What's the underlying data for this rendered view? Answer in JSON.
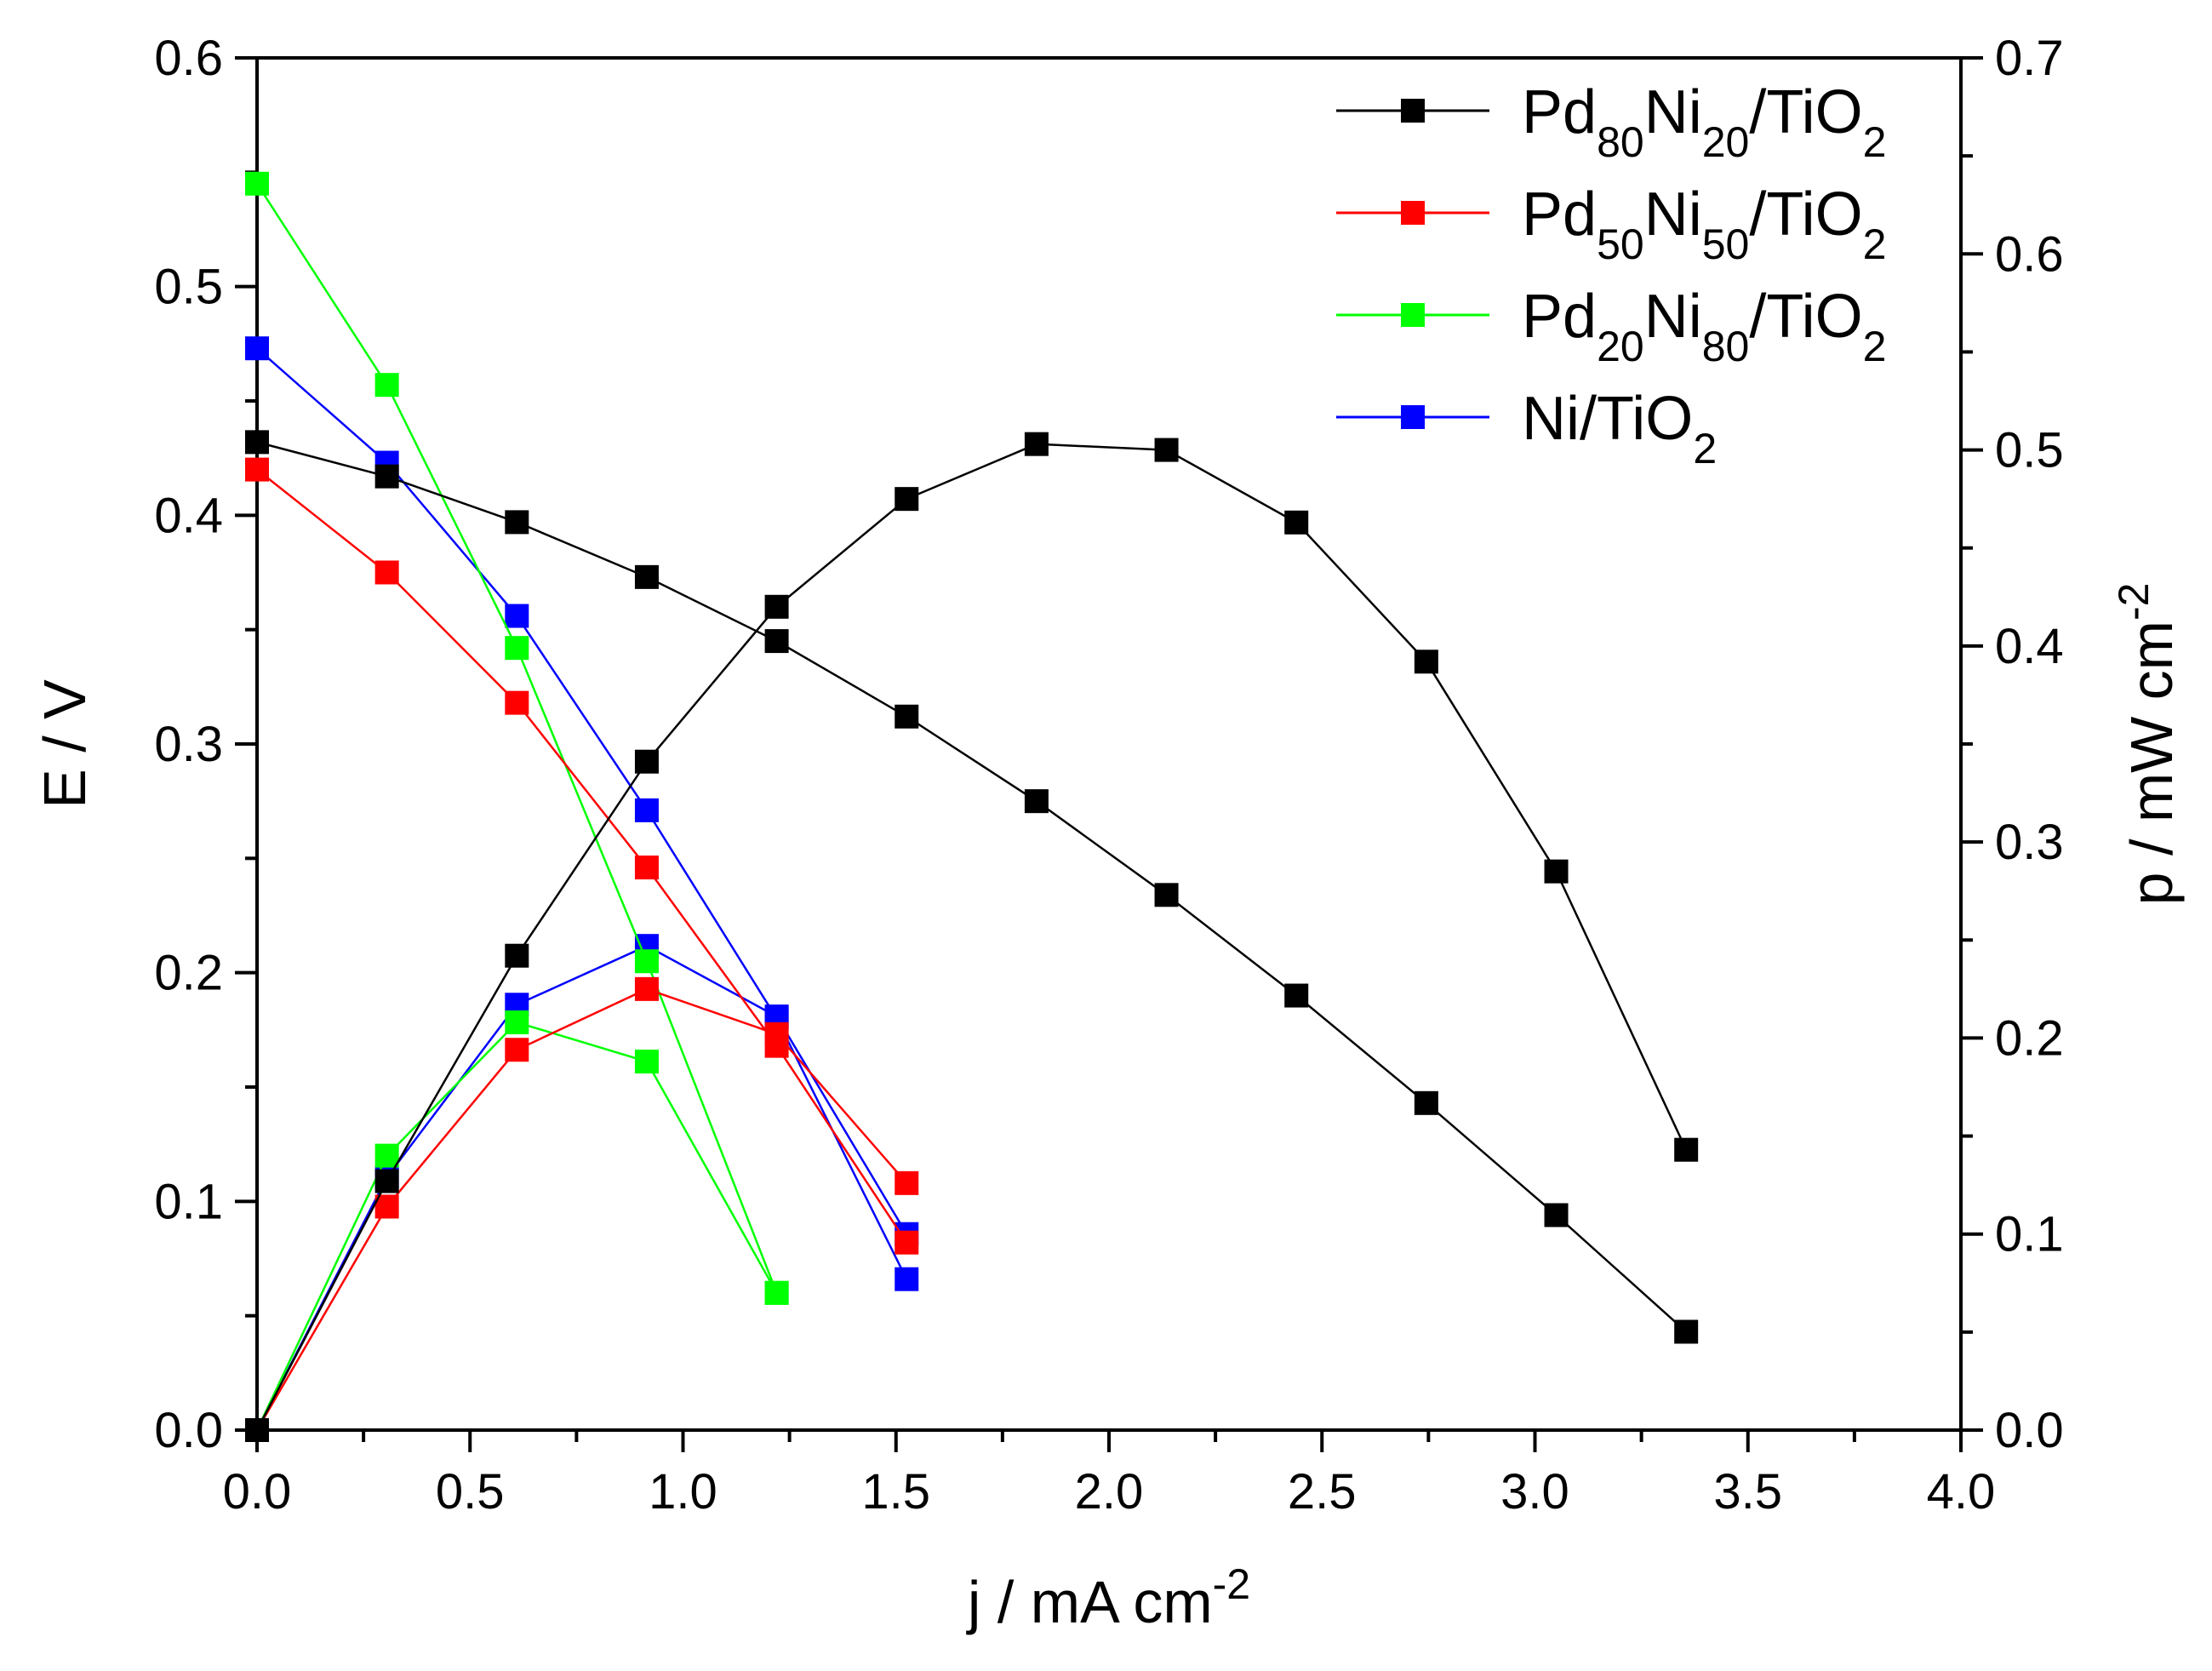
{
  "chart_data": {
    "type": "line",
    "title": "",
    "xlabel": {
      "text": "j / mA cm",
      "sup": "-2"
    },
    "ylabel_left": {
      "text": "E / V"
    },
    "ylabel_right": {
      "text": "p / mW cm",
      "sup": "-2"
    },
    "xlim": [
      0.0,
      4.0
    ],
    "ylim_left": [
      0.0,
      0.6
    ],
    "ylim_right": [
      0.0,
      0.7
    ],
    "x_ticks": [
      "0.0",
      "0.5",
      "1.0",
      "1.5",
      "2.0",
      "2.5",
      "3.0",
      "3.5",
      "4.0"
    ],
    "y_ticks_left": [
      "0.0",
      "0.1",
      "0.2",
      "0.3",
      "0.4",
      "0.5",
      "0.6"
    ],
    "y_ticks_right": [
      "0.0",
      "0.1",
      "0.2",
      "0.3",
      "0.4",
      "0.5",
      "0.6",
      "0.7"
    ],
    "legend_position": "top-right",
    "series": [
      {
        "id": "pd80ni20",
        "legend": {
          "parts": [
            {
              "t": "Pd"
            },
            {
              "t": "80",
              "sub": true
            },
            {
              "t": "Ni"
            },
            {
              "t": "20",
              "sub": true
            },
            {
              "t": "/TiO"
            },
            {
              "t": "2",
              "sub": true
            }
          ]
        },
        "color": "#000000",
        "polarization": {
          "x": [
            0.0,
            0.305,
            0.61,
            0.915,
            1.22,
            1.525,
            1.83,
            2.135,
            2.44,
            2.745,
            3.05,
            3.355
          ],
          "E": [
            0.432,
            0.417,
            0.397,
            0.373,
            0.345,
            0.312,
            0.275,
            0.234,
            0.19,
            0.143,
            0.094,
            0.043
          ]
        },
        "power": {
          "x": [
            0.0,
            0.305,
            0.61,
            0.915,
            1.22,
            1.525,
            1.83,
            2.135,
            2.44,
            2.745,
            3.05,
            3.355
          ],
          "p": [
            0.0,
            0.127,
            0.242,
            0.341,
            0.42,
            0.475,
            0.503,
            0.5,
            0.463,
            0.392,
            0.285,
            0.143
          ]
        }
      },
      {
        "id": "pd50ni50",
        "legend": {
          "parts": [
            {
              "t": "Pd"
            },
            {
              "t": "50",
              "sub": true
            },
            {
              "t": "Ni"
            },
            {
              "t": "50",
              "sub": true
            },
            {
              "t": "/TiO"
            },
            {
              "t": "2",
              "sub": true
            }
          ]
        },
        "color": "#ff0000",
        "polarization": {
          "x": [
            0.0,
            0.305,
            0.61,
            0.915,
            1.22,
            1.525
          ],
          "E": [
            0.42,
            0.375,
            0.318,
            0.246,
            0.168,
            0.082
          ]
        },
        "power": {
          "x": [
            0.0,
            0.305,
            0.61,
            0.915,
            1.22,
            1.525
          ],
          "p": [
            0.0,
            0.114,
            0.194,
            0.225,
            0.202,
            0.126
          ]
        }
      },
      {
        "id": "pd20ni80",
        "legend": {
          "parts": [
            {
              "t": "Pd"
            },
            {
              "t": "20",
              "sub": true
            },
            {
              "t": "Ni"
            },
            {
              "t": "80",
              "sub": true
            },
            {
              "t": "/TiO"
            },
            {
              "t": "2",
              "sub": true
            }
          ]
        },
        "color": "#00ff00",
        "polarization": {
          "x": [
            0.0,
            0.305,
            0.61,
            0.915,
            1.22
          ],
          "E": [
            0.545,
            0.457,
            0.342,
            0.205,
            0.06
          ]
        },
        "power": {
          "x": [
            0.0,
            0.305,
            0.61,
            0.915,
            1.22
          ],
          "p": [
            0.0,
            0.14,
            0.208,
            0.188,
            0.07
          ]
        }
      },
      {
        "id": "ni",
        "legend": {
          "parts": [
            {
              "t": "Ni/TiO"
            },
            {
              "t": "2",
              "sub": true
            }
          ]
        },
        "color": "#0000ff",
        "polarization": {
          "x": [
            0.0,
            0.305,
            0.61,
            0.915,
            1.22,
            1.525
          ],
          "E": [
            0.473,
            0.423,
            0.356,
            0.271,
            0.18,
            0.066
          ]
        },
        "power": {
          "x": [
            0.0,
            0.305,
            0.61,
            0.915,
            1.22,
            1.525
          ],
          "p": [
            0.0,
            0.129,
            0.217,
            0.247,
            0.211,
            0.1
          ]
        }
      }
    ]
  }
}
